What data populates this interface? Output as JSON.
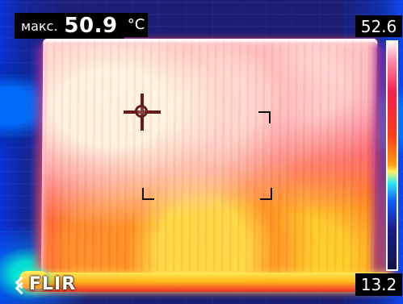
{
  "thermal_camera": {
    "readouts": {
      "max_label": "макс.",
      "max_value": "50.9",
      "unit": "°C"
    },
    "scale": {
      "top_value": "52.6",
      "bottom_value": "13.2"
    },
    "branding": {
      "logo_text": "FLIR",
      "icon_name": "flir-logo-icon"
    },
    "overlay_icons": {
      "spot_icon": "crosshair-icon",
      "area_icon": "measurement-corner-icon"
    },
    "palette_colors": [
      "#fff8ef",
      "#ff8da8",
      "#f31f4d",
      "#ff3b1c",
      "#ff9d10",
      "#fff15c",
      "#2fe9f5",
      "#145cff",
      "#1a1d8c",
      "#121343"
    ]
  }
}
